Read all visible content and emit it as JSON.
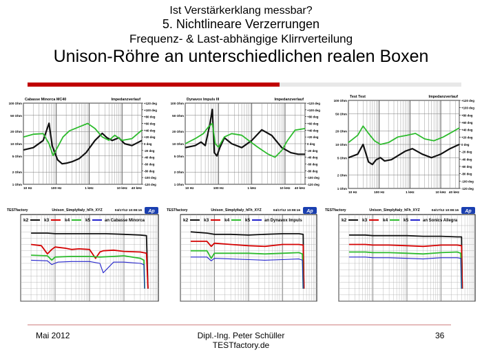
{
  "slide": {
    "title_line1": "Ist Verstärkerklang messbar?",
    "title_line2": "5. Nichtlineare Verzerrungen",
    "title_line3": "Frequenz- & Last-abhängige Klirrverteilung",
    "title_line4": "Unison-Röhre an unterschiedlichen realen Boxen"
  },
  "footer": {
    "date": "Mai 2012",
    "author": "Dipl.-Ing. Peter Schüller",
    "site": "TESTfactory.de",
    "page": "36"
  },
  "colors": {
    "accent": "#c00000",
    "impedance": "#111111",
    "phase": "#2dbb2d",
    "k2": "#111111",
    "k3": "#d40000",
    "k4": "#2dbb2d",
    "k5": "#2222cc"
  },
  "chart_data": [
    {
      "type": "line",
      "title": "Cabasse Minorca MC40",
      "subtitle": "Impedanzverlauf",
      "x_ticks": [
        "10 Hz",
        "100 Hz",
        "1 kHz",
        "10 kHz",
        "40 kHz"
      ],
      "y_left_ticks": [
        "100 Ohm",
        "50 Ohm",
        "20 Ohm",
        "10 Ohm",
        "5 Ohm",
        "2 Ohm",
        "1 Ohm"
      ],
      "y_right_ticks": [
        "+120 deg",
        "+100 deg",
        "+80 deg",
        "+60 deg",
        "+40 deg",
        "+20 deg",
        "0 deg",
        "-20 deg",
        "-40 deg",
        "-60 deg",
        "-80 deg",
        "-100 deg",
        "-120 deg"
      ],
      "x_scale": "log",
      "xlim": [
        10,
        40000
      ],
      "y_left_scale": "log",
      "y_left_lim": [
        1,
        100
      ],
      "y_right_lim": [
        -120,
        120
      ],
      "series": [
        {
          "axis": "left",
          "x": [
            10,
            20,
            40,
            60,
            75,
            90,
            110,
            150,
            200,
            300,
            500,
            800,
            1500,
            2500,
            3500,
            5000,
            8000,
            12000,
            20000,
            40000
          ],
          "values": [
            7,
            8,
            12,
            32,
            9,
            6,
            4,
            3.2,
            3.3,
            3.6,
            4.3,
            6,
            12,
            18,
            14,
            12,
            14,
            10,
            9,
            12
          ]
        },
        {
          "axis": "right",
          "x": [
            10,
            20,
            40,
            60,
            80,
            110,
            160,
            250,
            500,
            900,
            1500,
            2500,
            4000,
            6000,
            10000,
            20000,
            40000
          ],
          "values": [
            20,
            28,
            30,
            0,
            -35,
            -10,
            20,
            38,
            50,
            60,
            45,
            20,
            10,
            25,
            10,
            15,
            40
          ]
        }
      ]
    },
    {
      "type": "line",
      "title": "Dynavox Impuls III",
      "subtitle": "Impedanzverlauf",
      "x_ticks": [
        "10 Hz",
        "100 Hz",
        "1 kHz",
        "10 kHz",
        "40 kHz"
      ],
      "y_left_ticks": [
        "100 Ohm",
        "50 Ohm",
        "20 Ohm",
        "10 Ohm",
        "5 Ohm",
        "2 Ohm",
        "1 Ohm"
      ],
      "y_right_ticks": [
        "+120 deg",
        "+100 deg",
        "+80 deg",
        "+60 deg",
        "+40 deg",
        "+20 deg",
        "0 deg",
        "-20 deg",
        "-40 deg",
        "-60 deg",
        "-80 deg",
        "-100 deg",
        "-120 deg"
      ],
      "x_scale": "log",
      "xlim": [
        10,
        40000
      ],
      "y_left_scale": "log",
      "y_left_lim": [
        1,
        100
      ],
      "y_right_lim": [
        -120,
        120
      ],
      "series": [
        {
          "axis": "left",
          "x": [
            10,
            20,
            30,
            40,
            55,
            65,
            75,
            90,
            110,
            150,
            250,
            500,
            1000,
            2000,
            4000,
            8000,
            15000,
            25000,
            40000
          ],
          "values": [
            8,
            9,
            11,
            9,
            30,
            70,
            6,
            5,
            8,
            14,
            10,
            8,
            12,
            22,
            16,
            8,
            6,
            5.5,
            5.5
          ]
        },
        {
          "axis": "right",
          "x": [
            10,
            20,
            35,
            50,
            65,
            80,
            100,
            150,
            250,
            500,
            800,
            1500,
            3000,
            5000,
            8000,
            12000,
            20000,
            40000
          ],
          "values": [
            0,
            15,
            30,
            50,
            60,
            0,
            -10,
            20,
            30,
            25,
            10,
            -10,
            -30,
            -40,
            -20,
            10,
            40,
            45
          ]
        }
      ]
    },
    {
      "type": "line",
      "title": "Test Test",
      "subtitle": "Impedanzverlauf",
      "x_ticks": [
        "10 Hz",
        "100 Hz",
        "1 kHz",
        "10 kHz",
        "40 kHz"
      ],
      "y_left_ticks": [
        "100 Ohm",
        "50 Ohm",
        "20 Ohm",
        "10 Ohm",
        "5 Ohm",
        "2 Ohm",
        "1 Ohm"
      ],
      "y_right_ticks": [
        "+120 deg",
        "+100 deg",
        "+80 deg",
        "+60 deg",
        "+40 deg",
        "+20 deg",
        "0 deg",
        "-20 deg",
        "-40 deg",
        "-60 deg",
        "-80 deg",
        "-100 deg",
        "-120 deg"
      ],
      "x_scale": "log",
      "xlim": [
        10,
        40000
      ],
      "y_left_scale": "log",
      "y_left_lim": [
        1,
        100
      ],
      "y_right_lim": [
        -120,
        120
      ],
      "series": [
        {
          "axis": "left",
          "x": [
            10,
            20,
            30,
            45,
            60,
            80,
            110,
            150,
            250,
            400,
            700,
            1200,
            2500,
            5000,
            10000,
            20000,
            40000
          ],
          "values": [
            5,
            6,
            10,
            4,
            3.5,
            4.5,
            5,
            4.2,
            4.5,
            5.5,
            7,
            8,
            6,
            5,
            6,
            8,
            10
          ]
        },
        {
          "axis": "right",
          "x": [
            10,
            20,
            30,
            45,
            70,
            110,
            200,
            400,
            800,
            1500,
            3000,
            6000,
            12000,
            25000,
            40000
          ],
          "values": [
            5,
            25,
            50,
            30,
            10,
            0,
            5,
            20,
            25,
            30,
            15,
            10,
            20,
            35,
            45
          ]
        }
      ]
    },
    {
      "type": "line",
      "title": "Unison_SimplyItaly_hFh_XYZ",
      "brand": "TESTfactory",
      "logo": "Ap",
      "timestamp": "04/17/12 10:08:16",
      "legend": [
        "k2",
        "k3",
        "k4",
        "k5",
        "an Cabasse Minorca"
      ],
      "x_scale": "log",
      "xlim": [
        10,
        100000
      ],
      "y_scale": "db",
      "ylim": [
        -120,
        0
      ],
      "series": [
        {
          "name": "k2",
          "x": [
            20,
            60,
            100,
            300,
            1000,
            3000,
            10000,
            30000,
            45000,
            50000
          ],
          "values": [
            -12,
            -12,
            -13,
            -13,
            -13,
            -13,
            -14,
            -15,
            -16,
            -100
          ]
        },
        {
          "name": "k3",
          "x": [
            20,
            40,
            60,
            80,
            100,
            200,
            300,
            500,
            1000,
            1500,
            2000,
            2500,
            5000,
            10000,
            30000,
            45000,
            50000
          ],
          "values": [
            -30,
            -32,
            -45,
            -38,
            -34,
            -36,
            -38,
            -37,
            -38,
            -52,
            -42,
            -40,
            -39,
            -41,
            -42,
            -44,
            -100
          ]
        },
        {
          "name": "k4",
          "x": [
            20,
            60,
            80,
            100,
            300,
            1000,
            2000,
            5000,
            10000,
            30000,
            38000,
            40000
          ],
          "values": [
            -47,
            -48,
            -55,
            -50,
            -49,
            -49,
            -50,
            -49,
            -48,
            -52,
            -55,
            -100
          ]
        },
        {
          "name": "k5",
          "x": [
            20,
            60,
            80,
            120,
            300,
            1000,
            2000,
            2500,
            5000,
            10000,
            30000,
            38000,
            40000
          ],
          "values": [
            -55,
            -56,
            -62,
            -58,
            -57,
            -57,
            -60,
            -75,
            -58,
            -58,
            -60,
            -62,
            -100
          ]
        }
      ]
    },
    {
      "type": "line",
      "title": "Unison_SimplyItaly_hFh_XYZ",
      "brand": "TESTfactory",
      "logo": "Ap",
      "timestamp": "04/17/12 10:08:16",
      "legend": [
        "k2",
        "k3",
        "k4",
        "k5",
        "an Dynavox Impuls"
      ],
      "x_scale": "log",
      "xlim": [
        10,
        100000
      ],
      "y_scale": "db",
      "ylim": [
        -120,
        0
      ],
      "series": [
        {
          "name": "k2",
          "x": [
            20,
            60,
            100,
            300,
            1000,
            3000,
            10000,
            30000,
            40000,
            42000
          ],
          "values": [
            -10,
            -12,
            -14,
            -14,
            -15,
            -14,
            -13,
            -13,
            -14,
            -100
          ]
        },
        {
          "name": "k3",
          "x": [
            20,
            60,
            80,
            100,
            300,
            1000,
            3000,
            10000,
            30000,
            40000,
            42000
          ],
          "values": [
            -25,
            -25,
            -33,
            -28,
            -30,
            -32,
            -33,
            -30,
            -30,
            -31,
            -100
          ]
        },
        {
          "name": "k4",
          "x": [
            20,
            60,
            80,
            100,
            300,
            1000,
            3000,
            10000,
            30000,
            38000,
            40000
          ],
          "values": [
            -40,
            -40,
            -52,
            -44,
            -44,
            -44,
            -45,
            -44,
            -43,
            -45,
            -100
          ]
        },
        {
          "name": "k5",
          "x": [
            20,
            60,
            80,
            100,
            300,
            1000,
            3000,
            10000,
            30000,
            38000,
            40000
          ],
          "values": [
            -50,
            -50,
            -56,
            -52,
            -53,
            -54,
            -55,
            -54,
            -53,
            -55,
            -100
          ]
        }
      ]
    },
    {
      "type": "line",
      "title": "Unison_SimplyItaly_hFh_XYZ",
      "brand": "TESTfactory",
      "logo": "Ap",
      "timestamp": "04/17/12 10:08:16",
      "legend": [
        "k2",
        "k3",
        "k4",
        "k5",
        "an Sonics Allegra"
      ],
      "x_scale": "log",
      "xlim": [
        10,
        100000
      ],
      "y_scale": "db",
      "ylim": [
        -120,
        0
      ],
      "series": [
        {
          "name": "k2",
          "x": [
            20,
            60,
            100,
            300,
            1000,
            3000,
            10000,
            30000,
            40000,
            42000
          ],
          "values": [
            -15,
            -15,
            -16,
            -16,
            -16,
            -17,
            -17,
            -18,
            -18,
            -100
          ]
        },
        {
          "name": "k3",
          "x": [
            20,
            60,
            100,
            300,
            1000,
            3000,
            10000,
            30000,
            40000,
            42000
          ],
          "values": [
            -30,
            -30,
            -31,
            -31,
            -32,
            -33,
            -31,
            -31,
            -32,
            -100
          ]
        },
        {
          "name": "k4",
          "x": [
            20,
            60,
            100,
            300,
            1000,
            3000,
            10000,
            30000,
            38000,
            40000
          ],
          "values": [
            -42,
            -42,
            -43,
            -43,
            -44,
            -45,
            -43,
            -42,
            -44,
            -100
          ]
        },
        {
          "name": "k5",
          "x": [
            20,
            60,
            100,
            300,
            1000,
            3000,
            10000,
            30000,
            38000,
            40000
          ],
          "values": [
            -50,
            -50,
            -51,
            -51,
            -52,
            -53,
            -51,
            -51,
            -52,
            -100
          ]
        }
      ]
    }
  ]
}
